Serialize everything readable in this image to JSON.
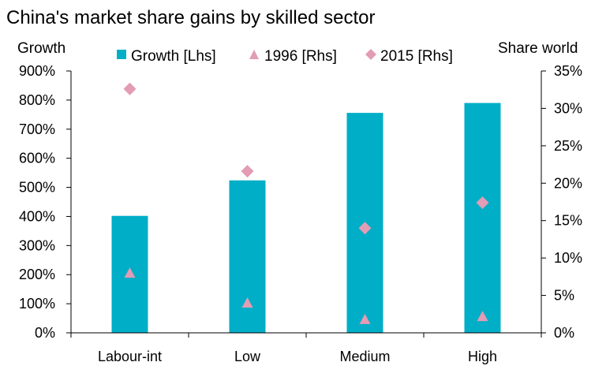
{
  "chart_data": {
    "type": "bar",
    "title": "China's market share gains by skilled sector",
    "ylabel_left": "Growth",
    "ylabel_right": "Share world",
    "categories": [
      "Labour-int",
      "Low",
      "Medium",
      "High"
    ],
    "yticks_left": [
      "0%",
      "100%",
      "200%",
      "300%",
      "400%",
      "500%",
      "600%",
      "700%",
      "800%",
      "900%"
    ],
    "yticks_right": [
      "0%",
      "5%",
      "10%",
      "15%",
      "20%",
      "25%",
      "30%",
      "35%"
    ],
    "ylim_left": [
      0,
      900
    ],
    "ylim_right": [
      0,
      35
    ],
    "series": [
      {
        "name": "Growth [Lhs]",
        "kind": "bar",
        "axis": "left",
        "color": "#00AEC7",
        "values": [
          402,
          524,
          756,
          790
        ]
      },
      {
        "name": "1996 [Rhs]",
        "kind": "triangle",
        "axis": "right",
        "color": "#E29CB4",
        "values": [
          8.0,
          4.0,
          1.8,
          2.2
        ]
      },
      {
        "name": "2015 [Rhs]",
        "kind": "diamond",
        "axis": "right",
        "color": "#E29CB4",
        "values": [
          32.6,
          21.6,
          14.0,
          17.4
        ]
      }
    ],
    "legend_position": "top"
  }
}
